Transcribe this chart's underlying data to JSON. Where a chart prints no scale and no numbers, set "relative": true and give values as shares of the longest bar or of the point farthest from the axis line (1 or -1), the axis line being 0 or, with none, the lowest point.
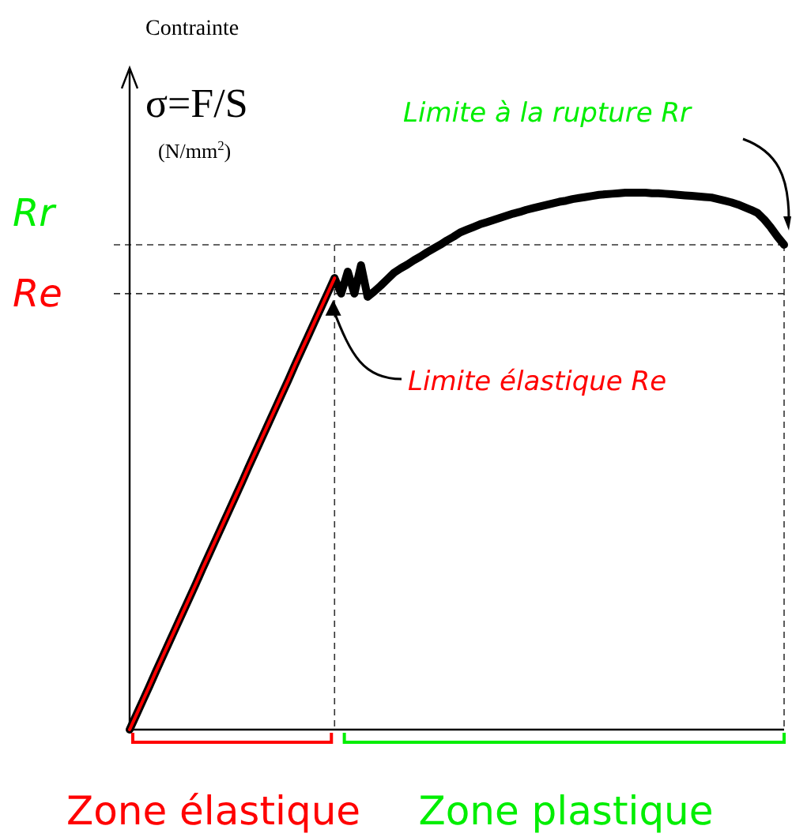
{
  "chart_data": {
    "type": "line",
    "relative": true,
    "marker": "none",
    "line_style": "solid",
    "categories": [
      null,
      null,
      null,
      null,
      null,
      null,
      null,
      null,
      null,
      null,
      null,
      null,
      null,
      null,
      null,
      null,
      null,
      null,
      null,
      null,
      null,
      null,
      null,
      null,
      null,
      null,
      null,
      null,
      null,
      null,
      null,
      null,
      null,
      null,
      null,
      null,
      null,
      null,
      null,
      null,
      null,
      null,
      null,
      null,
      null,
      null,
      null,
      null,
      null,
      null,
      null,
      null,
      null,
      null,
      null,
      null,
      null,
      null,
      null,
      null,
      null,
      null,
      null,
      null,
      null,
      null,
      null,
      null,
      null,
      null,
      null,
      null,
      null,
      null,
      null,
      null,
      null,
      null,
      null,
      null,
      null,
      null,
      null,
      null,
      null,
      null,
      null,
      null,
      null,
      null,
      null,
      null,
      null,
      null,
      null,
      null,
      null,
      null,
      null,
      null
    ],
    "series": [
      {
        "color": "#000000",
        "values": [
          0,
          0.027,
          0.054,
          0.081,
          0.109,
          0.136,
          0.163,
          0.19,
          0.217,
          0.244,
          0.271,
          0.299,
          0.326,
          0.353,
          0.38,
          0.407,
          0.434,
          0.461,
          0.489,
          0.516,
          0.543,
          0.57,
          0.597,
          0.624,
          0.651,
          0.679,
          0.706,
          0.733,
          0.76,
          0.787,
          0.814,
          0.841,
          0.812,
          0.853,
          0.812,
          0.865,
          0.806,
          0.816,
          0.827,
          0.839,
          0.851,
          0.859,
          0.866,
          0.874,
          0.881,
          0.889,
          0.896,
          0.903,
          0.911,
          0.918,
          0.926,
          0.931,
          0.936,
          0.941,
          0.945,
          0.949,
          0.953,
          0.957,
          0.961,
          0.964,
          0.968,
          0.971,
          0.974,
          0.977,
          0.98,
          0.983,
          0.985,
          0.988,
          0.99,
          0.992,
          0.994,
          0.996,
          0.997,
          0.998,
          0.999,
          1,
          1,
          1,
          1,
          0.999,
          0.999,
          0.998,
          0.997,
          0.996,
          0.995,
          0.994,
          0.993,
          0.992,
          0.991,
          0.988,
          0.985,
          0.982,
          0.978,
          0.973,
          0.968,
          0.962,
          0.95,
          0.935,
          0.918,
          0.903
        ]
      },
      {
        "color": "#ff0000",
        "values": [
          0,
          0.027,
          0.054,
          0.081,
          0.109,
          0.136,
          0.163,
          0.19,
          0.217,
          0.244,
          0.271,
          0.299,
          0.326,
          0.353,
          0.38,
          0.407,
          0.434,
          0.461,
          0.489,
          0.516,
          0.543,
          0.57,
          0.597,
          0.624,
          0.651,
          0.679,
          0.706,
          0.733,
          0.76,
          0.787,
          0.814,
          0.841,
          null,
          null,
          null,
          null,
          null,
          null,
          null,
          null,
          null,
          null,
          null,
          null,
          null,
          null,
          null,
          null,
          null,
          null,
          null,
          null,
          null,
          null,
          null,
          null,
          null,
          null,
          null,
          null,
          null,
          null,
          null,
          null,
          null,
          null,
          null,
          null,
          null,
          null,
          null,
          null,
          null,
          null,
          null,
          null,
          null,
          null,
          null,
          null,
          null,
          null,
          null,
          null,
          null,
          null,
          null,
          null,
          null,
          null,
          null,
          null,
          null,
          null,
          null,
          null,
          null,
          null,
          null,
          null
        ]
      }
    ],
    "ref_lines": [
      {
        "axis": "y",
        "value": 0.903,
        "label": "Rr",
        "line_style": "dashed"
      },
      {
        "axis": "y",
        "value": 0.812,
        "label": "Re",
        "line_style": "dashed"
      }
    ],
    "annotations": [
      "Contrainte",
      "σ=F/S",
      "(N/mm$^{2}$)",
      "Limite à la rupture Rr",
      "Limite élastique Re",
      "Zone élastique",
      "Zone plastique"
    ]
  }
}
